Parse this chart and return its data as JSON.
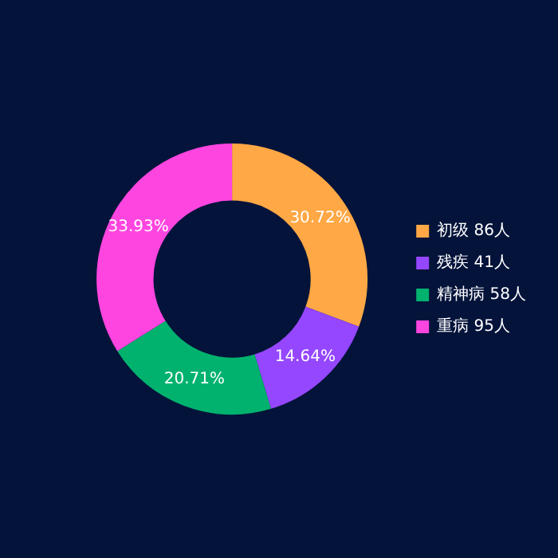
{
  "chart_data": {
    "type": "donut",
    "categories": [
      "初级 86人",
      "残疾 41人",
      "精神病 58人",
      "重病 95人"
    ],
    "values": [
      30.72,
      14.64,
      20.71,
      33.93
    ],
    "colors": [
      "#ffa845",
      "#9547ff",
      "#00b26e",
      "#ff45e0"
    ],
    "value_labels": [
      "30.72%",
      "14.64%",
      "20.71%",
      "33.93%"
    ],
    "legend": "right"
  }
}
